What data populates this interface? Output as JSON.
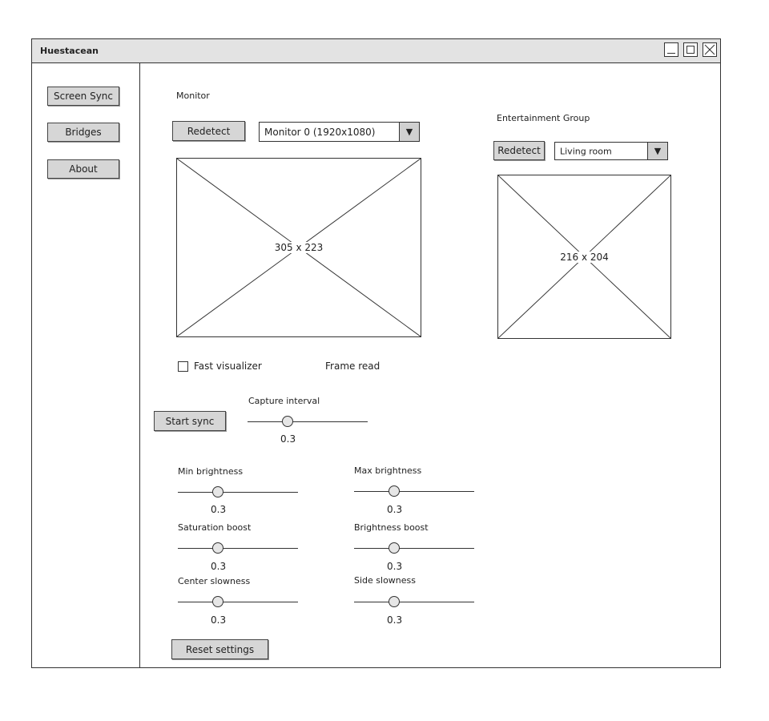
{
  "window": {
    "title": "Huestacean"
  },
  "sidebar": {
    "items": [
      {
        "label": "Screen Sync"
      },
      {
        "label": "Bridges"
      },
      {
        "label": "About"
      }
    ]
  },
  "monitor": {
    "label": "Monitor",
    "redetect": "Redetect",
    "selected": "Monitor 0 (1920x1080)",
    "preview": "305 x 223"
  },
  "entertainment": {
    "label": "Entertainment Group",
    "redetect": "Redetect",
    "selected": "Living room",
    "preview": "216 x 204"
  },
  "options": {
    "fast_visualizer": "Fast visualizer",
    "fast_visualizer_checked": false,
    "frame_read": "Frame read"
  },
  "sync": {
    "start_button": "Start sync",
    "capture_interval": {
      "label": "Capture interval",
      "value": "0.3",
      "level": 0.33
    }
  },
  "settings": {
    "min_brightness": {
      "label": "Min brightness",
      "value": "0.3",
      "level": 0.33
    },
    "max_brightness": {
      "label": "Max brightness",
      "value": "0.3",
      "level": 0.33
    },
    "saturation_boost": {
      "label": "Saturation boost",
      "value": "0.3",
      "level": 0.33
    },
    "brightness_boost": {
      "label": "Brightness boost",
      "value": "0.3",
      "level": 0.33
    },
    "center_slowness": {
      "label": "Center slowness",
      "value": "0.3",
      "level": 0.33
    },
    "side_slowness": {
      "label": "Side slowness",
      "value": "0.3",
      "level": 0.33
    },
    "reset_button": "Reset settings"
  },
  "icons": {
    "dropdown": "chevron-down-icon",
    "minimize": "minimize-icon",
    "maximize": "maximize-icon",
    "close": "close-icon"
  }
}
